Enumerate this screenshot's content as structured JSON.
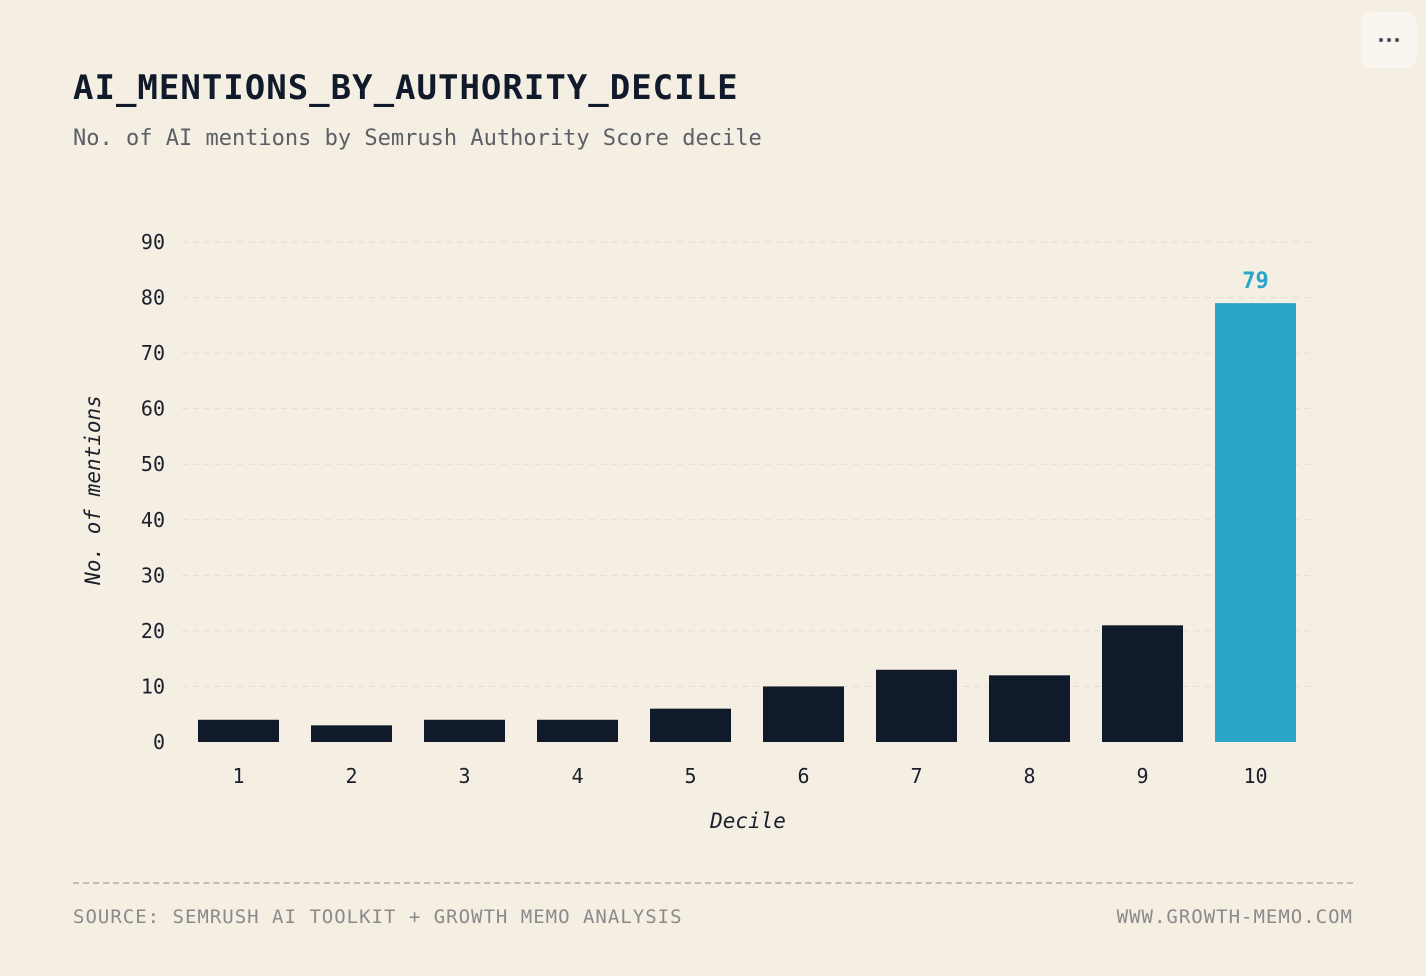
{
  "header": {
    "title": "AI_MENTIONS_BY_AUTHORITY_DECILE",
    "subtitle": "No. of AI mentions by Semrush Authority Score decile"
  },
  "menu": {
    "icon": "more-horizontal-icon"
  },
  "footer": {
    "source": "SOURCE: SEMRUSH AI TOOLKIT + GROWTH MEMO ANALYSIS",
    "website": "WWW.GROWTH-MEMO.COM"
  },
  "colors": {
    "background": "#f4eee3",
    "bar": "#111a2b",
    "highlight": "#29a6c9",
    "grid": "#e4ddd1",
    "axis_text": "#1a1f2b"
  },
  "chart_data": {
    "type": "bar",
    "title": "AI_MENTIONS_BY_AUTHORITY_DECILE",
    "subtitle": "No. of AI mentions by Semrush Authority Score decile",
    "xlabel": "Decile",
    "ylabel": "No. of mentions",
    "categories": [
      "1",
      "2",
      "3",
      "4",
      "5",
      "6",
      "7",
      "8",
      "9",
      "10"
    ],
    "values": [
      4,
      3,
      4,
      4,
      6,
      10,
      13,
      12,
      21,
      79
    ],
    "highlight_index": 9,
    "data_labels": [
      {
        "index": 9,
        "text": "79"
      }
    ],
    "ylim": [
      0,
      90
    ],
    "yticks": [
      0,
      10,
      20,
      30,
      40,
      50,
      60,
      70,
      80,
      90
    ],
    "grid": "horizontal dashed",
    "legend": "none"
  }
}
